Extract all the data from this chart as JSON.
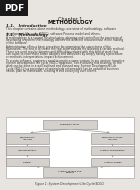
{
  "bg_color": "#e8e4df",
  "page_bg": "#ffffff",
  "title_chapter": "Chapter 1",
  "title_main": "METHODOLOGY",
  "section1_title": "1.1.   Introduction",
  "section1_text": "This chapter contains about methodology, overview of methodology, software\ndevelopment life cycle (SDLC), software Process model and others.",
  "section2_title": "1.1.   Methodology",
  "section2_text_lines": [
    "A methodology is a system for structuring, planning and controlling the processes of",
    "developing a system. Methodology defines the different resources use in the making",
    "of the software.",
    "",
    "Administration offers a basic procedure for organizing the correctness of the",
    "framework. The end is to create the real state website for following a certain method.",
    "There are used regular dangers and difficulties related with this kind of work that",
    "can cause to even more brave dangers and difficulties by simply having a procedure",
    "or methods, interpretation, impact achievement.",
    "",
    "To create software, engineers need to practice some system. In my venture I practice",
    "system development life cycle (SDLC) approach. Since utilizing this strategy, all the",
    "work can be done in a well-outlined and planned way. System Development Life",
    "Cycle (SDLC) is a procedure of seeing how a framework can be uphold of business",
    "needs, plan for framework, creating it and conveying over clients."
  ],
  "diagram_label": "Figure 1: System Development Life Cycle(SDLC)",
  "pdf_badge_color": "#1a1a1a",
  "box_fill": "#d4d0cc",
  "box_edge": "#888888",
  "arrow_color": "#999999",
  "diag_border": "#aaaaaa"
}
